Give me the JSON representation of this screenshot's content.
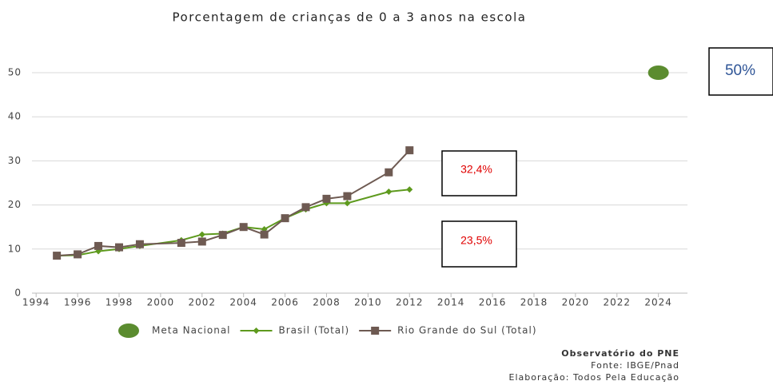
{
  "chart_data": {
    "type": "line",
    "title": "Porcentagem de crianças de 0 a 3 anos na escola",
    "xlim": [
      1993.8,
      2025.4
    ],
    "xticks": [
      1994,
      1996,
      1998,
      2000,
      2002,
      2004,
      2006,
      2008,
      2010,
      2012,
      2014,
      2016,
      2018,
      2020,
      2022,
      2024
    ],
    "ylim": [
      0,
      50
    ],
    "yticks": [
      0,
      10,
      20,
      30,
      40,
      50
    ],
    "grid": true,
    "series": [
      {
        "name": "Meta Nacional",
        "color": "#5b8c2f",
        "marker": "circle",
        "x": [
          2024
        ],
        "values": [
          50
        ]
      },
      {
        "name": "Brasil (Total)",
        "color": "#5e9a1e",
        "marker": "diamond",
        "x": [
          1995,
          1996,
          1997,
          1998,
          1999,
          2001,
          2002,
          2003,
          2004,
          2005,
          2006,
          2007,
          2008,
          2009,
          2011,
          2012
        ],
        "values": [
          8.5,
          8.6,
          9.5,
          10.0,
          10.7,
          12.0,
          13.3,
          13.5,
          15.0,
          14.5,
          17.0,
          19.0,
          20.4,
          20.4,
          23.0,
          23.5
        ]
      },
      {
        "name": "Rio Grande do Sul (Total)",
        "color": "#6e5a52",
        "marker": "square",
        "x": [
          1995,
          1996,
          1997,
          1998,
          1999,
          2001,
          2002,
          2003,
          2004,
          2005,
          2006,
          2007,
          2008,
          2009,
          2011,
          2012
        ],
        "values": [
          8.5,
          8.8,
          10.7,
          10.4,
          11.1,
          11.4,
          11.7,
          13.2,
          15.0,
          13.3,
          17.0,
          19.5,
          21.4,
          22.0,
          27.4,
          32.4
        ]
      }
    ],
    "annotations": [
      "32,4%",
      "23,5%",
      "50%"
    ],
    "footer": [
      "Observatório do PNE",
      "Fonte: IBGE/Pnad",
      "Elaboração: Todos Pela Educação"
    ]
  }
}
